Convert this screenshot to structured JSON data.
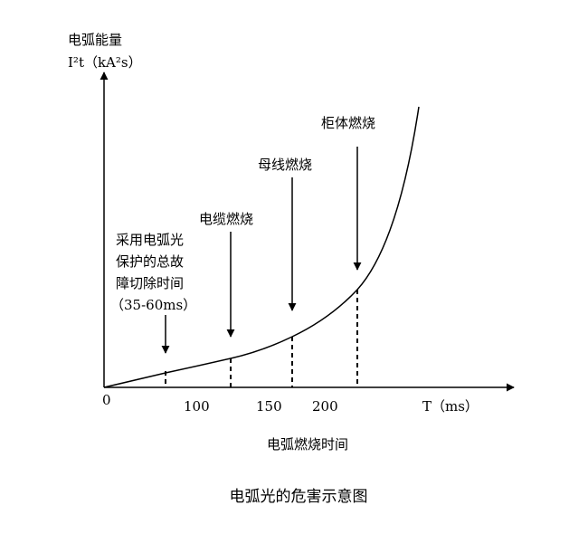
{
  "y_axis": {
    "title": "电弧能量",
    "unit": "I²t（kA²s）"
  },
  "x_axis": {
    "ticks": [
      "0",
      "100",
      "150",
      "200"
    ],
    "unit": "T（ms）",
    "title": "电弧燃烧时间"
  },
  "annotations": [
    {
      "lines": [
        "采用电弧光",
        "保护的总故",
        "障切除时间",
        "（35-60ms）"
      ]
    },
    {
      "lines": [
        "电缆燃烧"
      ]
    },
    {
      "lines": [
        "母线燃烧"
      ]
    },
    {
      "lines": [
        "柜体燃烧"
      ]
    }
  ],
  "caption": "电弧光的危害示意图"
}
